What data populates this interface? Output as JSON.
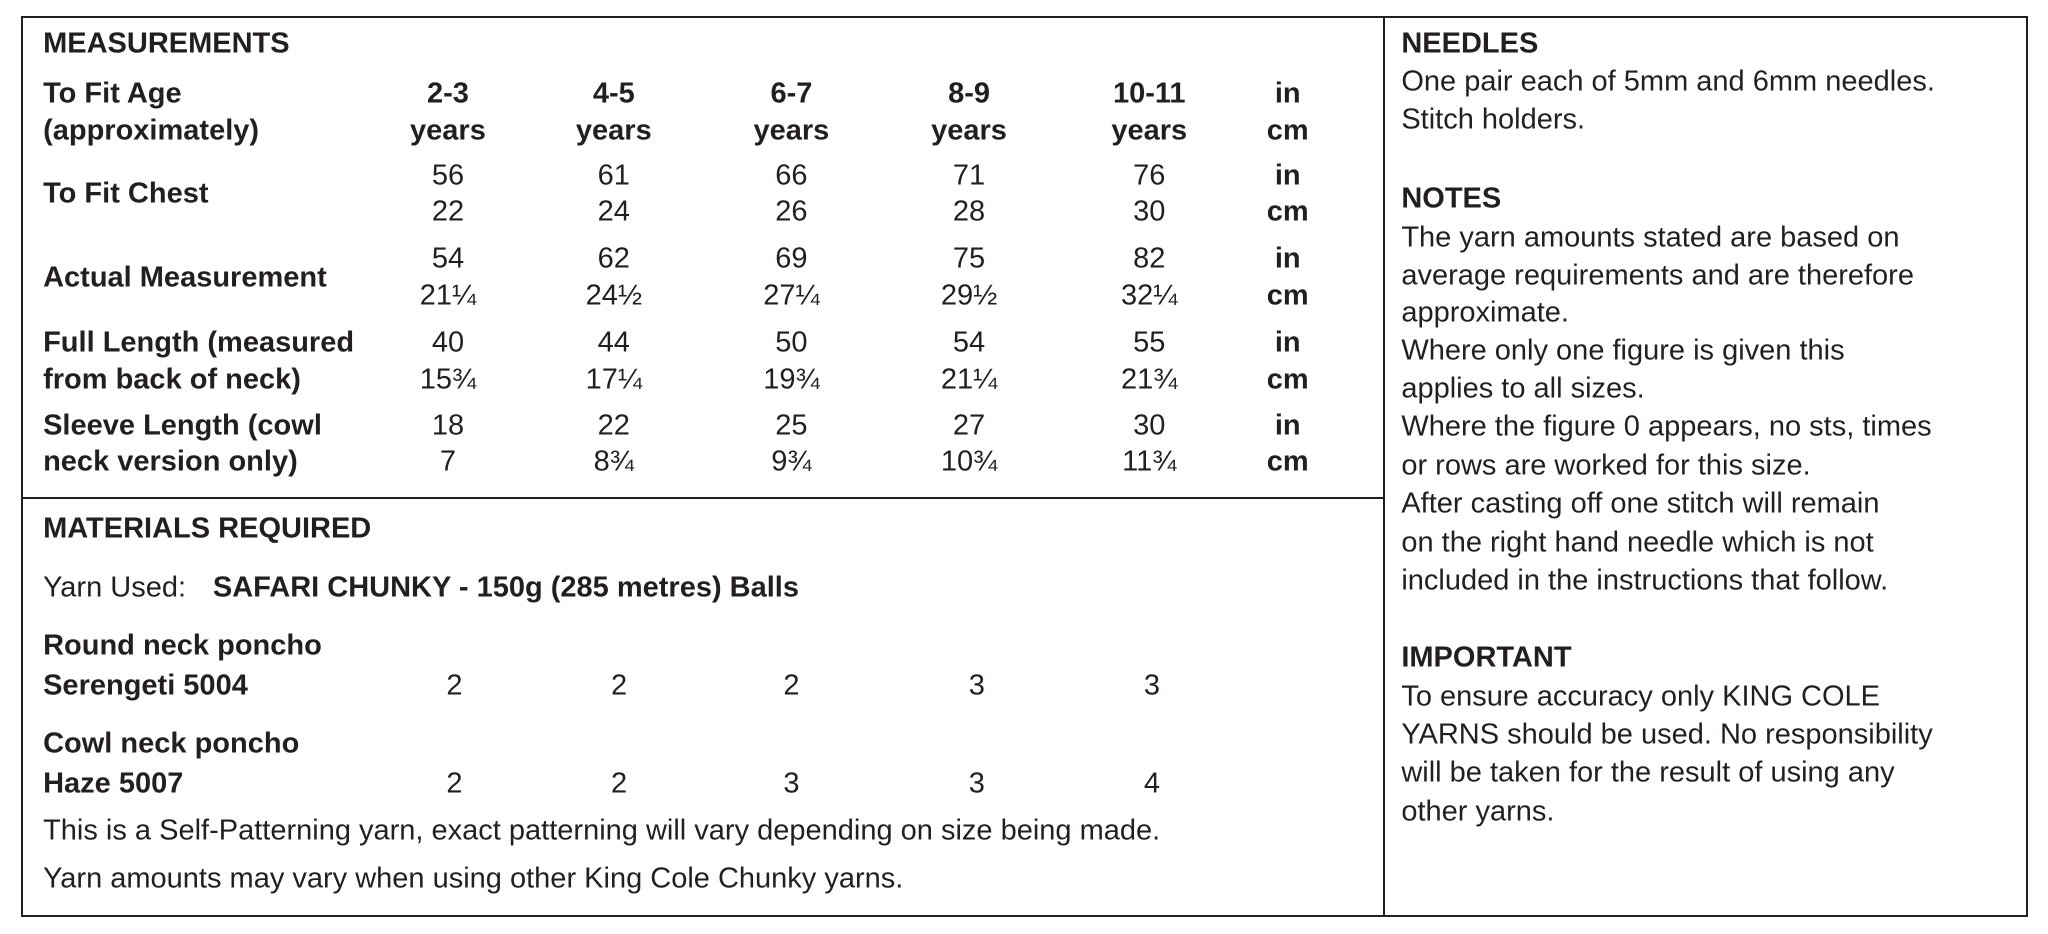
{
  "measurements": {
    "title": "MEASUREMENTS",
    "rows": [
      {
        "label": [
          "To Fit Age",
          "(approximately)"
        ],
        "sizes": [
          [
            "2-3",
            "years"
          ],
          [
            "4-5",
            "years"
          ],
          [
            "6-7",
            "years"
          ],
          [
            "8-9",
            "years"
          ],
          [
            "10-11",
            "years"
          ]
        ],
        "units": [
          "in",
          "cm"
        ]
      },
      {
        "label": [
          "To Fit Chest"
        ],
        "sizes": [
          [
            "56",
            "22"
          ],
          [
            "61",
            "24"
          ],
          [
            "66",
            "26"
          ],
          [
            "71",
            "28"
          ],
          [
            "76",
            "30"
          ]
        ],
        "units": [
          "in",
          "cm"
        ]
      },
      {
        "label": [
          "Actual Measurement"
        ],
        "sizes": [
          [
            "54",
            "21¼"
          ],
          [
            "62",
            "24½"
          ],
          [
            "69",
            "27¼"
          ],
          [
            "75",
            "29½"
          ],
          [
            "82",
            "32¼"
          ]
        ],
        "units": [
          "in",
          "cm"
        ]
      },
      {
        "label": [
          "Full Length (measured",
          "from back of neck)"
        ],
        "sizes": [
          [
            "40",
            "15¾"
          ],
          [
            "44",
            "17¼"
          ],
          [
            "50",
            "19¾"
          ],
          [
            "54",
            "21¼"
          ],
          [
            "55",
            "21¾"
          ]
        ],
        "units": [
          "in",
          "cm"
        ]
      },
      {
        "label": [
          "Sleeve Length (cowl",
          "neck version only)"
        ],
        "sizes": [
          [
            "18",
            "7"
          ],
          [
            "22",
            "8¾"
          ],
          [
            "25",
            "9¾"
          ],
          [
            "27",
            "10¾"
          ],
          [
            "30",
            "11¾"
          ]
        ],
        "units": [
          "in",
          "cm"
        ]
      }
    ]
  },
  "materials": {
    "title": "MATERIALS REQUIRED",
    "yarn_label": "Yarn Used:",
    "yarn_name": "SAFARI CHUNKY - 150g (285 metres) Balls",
    "options": [
      {
        "label": [
          "Round neck poncho",
          "Serengeti 5004"
        ],
        "balls": [
          2,
          2,
          2,
          3,
          3
        ]
      },
      {
        "label": [
          "Cowl neck poncho",
          "Haze 5007"
        ],
        "balls": [
          2,
          2,
          3,
          3,
          4
        ]
      }
    ],
    "notes": [
      "This is a Self-Patterning yarn, exact patterning will vary depending on size being made.",
      "Yarn amounts may vary when using other King Cole Chunky yarns."
    ]
  },
  "needles": {
    "title": "NEEDLES",
    "lines": [
      "One pair each of 5mm and 6mm needles.",
      "Stitch holders."
    ]
  },
  "notes": {
    "title": "NOTES",
    "lines": [
      "The yarn amounts stated are based on",
      "average requirements and are therefore",
      "approximate.",
      "Where only one figure is given this",
      "applies to all sizes.",
      "Where the figure 0 appears, no sts, times",
      "or rows are worked for this size.",
      "After casting off one stitch will remain",
      "on the right hand needle which is not",
      "included in the instructions that follow."
    ]
  },
  "important": {
    "title": "IMPORTANT",
    "lines": [
      "To ensure accuracy only KING COLE",
      "YARNS should be used. No responsibility",
      "will be taken for the result of using any",
      "other yarns."
    ]
  }
}
